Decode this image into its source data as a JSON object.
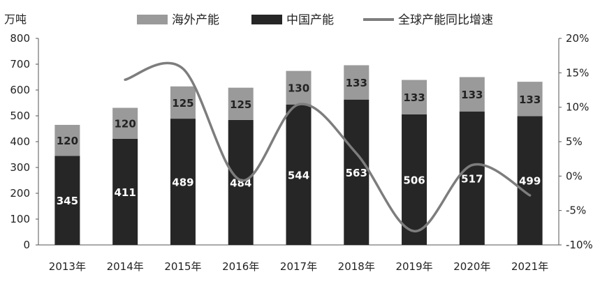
{
  "chart_data": {
    "type": "bar",
    "stacked": true,
    "y_unit_label": "万吨",
    "categories": [
      "2013年",
      "2014年",
      "2015年",
      "2016年",
      "2017年",
      "2018年",
      "2019年",
      "2020年",
      "2021年"
    ],
    "series": [
      {
        "name": "中国产能",
        "values": [
          345,
          411,
          489,
          484,
          544,
          563,
          506,
          517,
          499
        ],
        "color": "#262626"
      },
      {
        "name": "海外产能",
        "values": [
          120,
          120,
          125,
          125,
          130,
          133,
          133,
          133,
          133
        ],
        "color": "#9a9a9a"
      }
    ],
    "line_series": {
      "name": "全球产能同比增速",
      "color": "#7d7d7d",
      "axis": "right",
      "start_index": 1,
      "values": [
        14.0,
        15.6,
        -0.6,
        10.4,
        3.3,
        -8.0,
        1.6,
        -2.8
      ]
    },
    "legend_order": [
      "海外产能",
      "中国产能",
      "全球产能同比增速"
    ],
    "legend_position": "top",
    "ylim_left": [
      0,
      800
    ],
    "yticks_left": [
      "0",
      "100",
      "200",
      "300",
      "400",
      "500",
      "600",
      "700",
      "800"
    ],
    "ylim_right": [
      -10,
      20
    ],
    "yticks_right": [
      "-10%",
      "-5%",
      "0%",
      "5%",
      "10%",
      "15%",
      "20%"
    ],
    "grid": false
  }
}
